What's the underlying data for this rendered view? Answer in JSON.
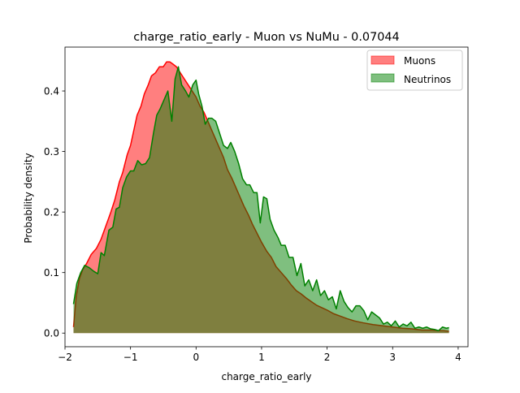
{
  "chart_data": {
    "type": "area",
    "title": "charge_ratio_early - Muon vs NuMu - 0.07044",
    "xlabel": "charge_ratio_early",
    "ylabel": "Probability density",
    "xlim": [
      -2.0,
      4.15
    ],
    "ylim": [
      -0.0225,
      0.4725
    ],
    "xticks": [
      -2,
      -1,
      0,
      1,
      2,
      3,
      4
    ],
    "xtick_labels": [
      "−2",
      "−1",
      "0",
      "1",
      "2",
      "3",
      "4"
    ],
    "yticks": [
      0.0,
      0.1,
      0.2,
      0.3,
      0.4
    ],
    "ytick_labels": [
      "0.0",
      "0.1",
      "0.2",
      "0.3",
      "0.4"
    ],
    "legend_position": "top-right",
    "grid": false,
    "series": [
      {
        "name": "Muons",
        "line_color": "#ff0000",
        "fill_color": "#ff0000",
        "fill_alpha": 0.5,
        "x": [
          -1.87,
          -1.83,
          -1.78,
          -1.73,
          -1.67,
          -1.6,
          -1.52,
          -1.45,
          -1.4,
          -1.35,
          -1.3,
          -1.24,
          -1.17,
          -1.12,
          -1.05,
          -1.0,
          -0.96,
          -0.9,
          -0.84,
          -0.79,
          -0.73,
          -0.68,
          -0.62,
          -0.56,
          -0.5,
          -0.45,
          -0.4,
          -0.36,
          -0.3,
          -0.24,
          -0.18,
          -0.12,
          -0.06,
          0.0,
          0.06,
          0.12,
          0.18,
          0.24,
          0.3,
          0.36,
          0.42,
          0.48,
          0.55,
          0.61,
          0.67,
          0.73,
          0.8,
          0.86,
          0.93,
          1.0,
          1.08,
          1.15,
          1.22,
          1.3,
          1.38,
          1.45,
          1.53,
          1.6,
          1.68,
          1.76,
          1.84,
          1.92,
          2.0,
          2.1,
          2.2,
          2.3,
          2.42,
          2.55,
          2.7,
          2.85,
          3.0,
          3.15,
          3.3,
          3.45,
          3.6,
          3.7,
          3.78,
          3.86
        ],
        "y": [
          0.01,
          0.06,
          0.09,
          0.105,
          0.115,
          0.13,
          0.14,
          0.155,
          0.17,
          0.185,
          0.2,
          0.22,
          0.25,
          0.265,
          0.295,
          0.31,
          0.33,
          0.36,
          0.375,
          0.395,
          0.41,
          0.425,
          0.43,
          0.44,
          0.44,
          0.448,
          0.448,
          0.445,
          0.44,
          0.43,
          0.42,
          0.41,
          0.4,
          0.39,
          0.375,
          0.365,
          0.35,
          0.335,
          0.32,
          0.305,
          0.29,
          0.27,
          0.255,
          0.24,
          0.225,
          0.21,
          0.195,
          0.18,
          0.165,
          0.15,
          0.135,
          0.125,
          0.11,
          0.1,
          0.09,
          0.08,
          0.07,
          0.065,
          0.058,
          0.052,
          0.046,
          0.042,
          0.038,
          0.032,
          0.028,
          0.024,
          0.02,
          0.017,
          0.014,
          0.012,
          0.01,
          0.008,
          0.007,
          0.005,
          0.005,
          0.004,
          0.004,
          0.003
        ]
      },
      {
        "name": "Neutrinos",
        "line_color": "#008000",
        "fill_color": "#008000",
        "fill_alpha": 0.5,
        "x": [
          -1.87,
          -1.82,
          -1.76,
          -1.7,
          -1.63,
          -1.56,
          -1.5,
          -1.45,
          -1.4,
          -1.33,
          -1.27,
          -1.22,
          -1.17,
          -1.12,
          -1.06,
          -1.0,
          -0.95,
          -0.89,
          -0.83,
          -0.77,
          -0.71,
          -0.65,
          -0.6,
          -0.55,
          -0.49,
          -0.43,
          -0.37,
          -0.32,
          -0.27,
          -0.22,
          -0.16,
          -0.11,
          -0.05,
          0.0,
          0.04,
          0.09,
          0.14,
          0.19,
          0.24,
          0.3,
          0.36,
          0.42,
          0.48,
          0.53,
          0.59,
          0.65,
          0.71,
          0.77,
          0.82,
          0.88,
          0.93,
          0.98,
          1.03,
          1.08,
          1.13,
          1.19,
          1.25,
          1.3,
          1.36,
          1.42,
          1.48,
          1.54,
          1.6,
          1.66,
          1.72,
          1.78,
          1.84,
          1.9,
          1.96,
          2.02,
          2.08,
          2.14,
          2.2,
          2.26,
          2.32,
          2.38,
          2.44,
          2.5,
          2.56,
          2.62,
          2.68,
          2.74,
          2.8,
          2.86,
          2.92,
          2.98,
          3.04,
          3.1,
          3.16,
          3.22,
          3.28,
          3.34,
          3.4,
          3.46,
          3.52,
          3.58,
          3.64,
          3.7,
          3.76,
          3.82,
          3.86
        ],
        "y": [
          0.048,
          0.082,
          0.1,
          0.112,
          0.108,
          0.102,
          0.098,
          0.133,
          0.128,
          0.17,
          0.175,
          0.205,
          0.208,
          0.24,
          0.258,
          0.268,
          0.268,
          0.285,
          0.278,
          0.28,
          0.29,
          0.33,
          0.36,
          0.37,
          0.385,
          0.4,
          0.35,
          0.42,
          0.44,
          0.41,
          0.4,
          0.39,
          0.41,
          0.418,
          0.395,
          0.375,
          0.345,
          0.355,
          0.355,
          0.35,
          0.33,
          0.31,
          0.305,
          0.315,
          0.3,
          0.28,
          0.255,
          0.245,
          0.245,
          0.232,
          0.232,
          0.182,
          0.225,
          0.222,
          0.188,
          0.17,
          0.158,
          0.145,
          0.145,
          0.125,
          0.125,
          0.095,
          0.115,
          0.078,
          0.088,
          0.07,
          0.088,
          0.062,
          0.07,
          0.055,
          0.06,
          0.04,
          0.07,
          0.052,
          0.042,
          0.035,
          0.045,
          0.045,
          0.037,
          0.022,
          0.035,
          0.03,
          0.025,
          0.015,
          0.018,
          0.012,
          0.02,
          0.01,
          0.015,
          0.012,
          0.018,
          0.008,
          0.01,
          0.008,
          0.01,
          0.007,
          0.006,
          0.004,
          0.01,
          0.008,
          0.009
        ]
      }
    ]
  }
}
